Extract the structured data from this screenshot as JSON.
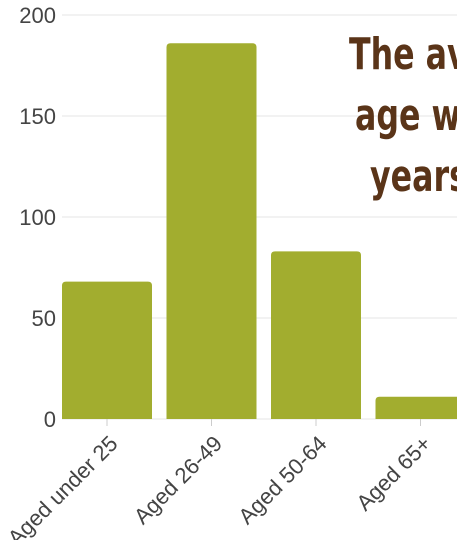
{
  "chart_data": {
    "type": "bar",
    "categories": [
      "Aged under 25",
      "Aged 26-49",
      "Aged 50-64",
      "Aged 65+"
    ],
    "values": [
      68,
      186,
      83,
      11
    ],
    "ylim": [
      0,
      200
    ],
    "yticks": [
      0,
      50,
      100,
      150,
      200
    ],
    "grid": true,
    "title": "",
    "xlabel": "",
    "ylabel": "",
    "bar_color": "#a2ad2f",
    "annotation_lines": [
      "The av",
      "age w",
      "years"
    ],
    "annotation_color": "#5a3418"
  }
}
